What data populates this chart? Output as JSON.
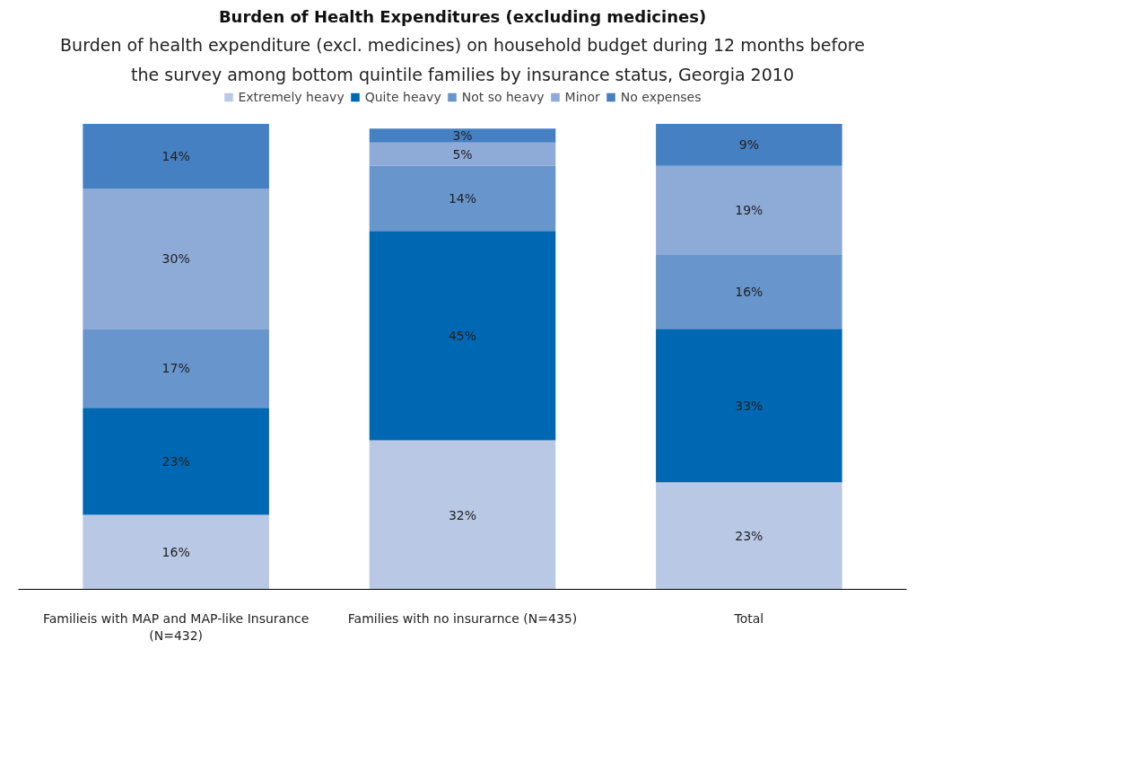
{
  "chart_data": {
    "type": "bar",
    "stacked": true,
    "legend": "top",
    "grid": false,
    "title": "Burden of Health Expenditures (excluding medicines)",
    "subtitle": "Burden of health expenditure (excl. medicines) on household budget during 12 months before the survey among bottom quintile families by insurance status, Georgia 2010",
    "categories": [
      "Familieis with MAP and MAP-like Insurance (N=432)",
      "Families with no insurarnce (N=435)",
      "Total"
    ],
    "series": [
      {
        "name": "Extremely heavy",
        "color": "#b9c9e5",
        "values": [
          16,
          32,
          23
        ],
        "value_labels": [
          "16%",
          "32%",
          "23%"
        ]
      },
      {
        "name": "Quite heavy",
        "color": "#0068b3",
        "values": [
          23,
          45,
          33
        ],
        "value_labels": [
          "23%",
          "45%",
          "33%"
        ]
      },
      {
        "name": "Not so heavy",
        "color": "#6895cc",
        "values": [
          17,
          14,
          16
        ],
        "value_labels": [
          "17%",
          "14%",
          "16%"
        ]
      },
      {
        "name": "Minor",
        "color": "#8eaad7",
        "values": [
          30,
          5,
          19
        ],
        "value_labels": [
          "30%",
          "5%",
          "19%"
        ]
      },
      {
        "name": "No expenses",
        "color": "#4580c2",
        "values": [
          14,
          3,
          9
        ],
        "value_labels": [
          "14%",
          "3%",
          "9%"
        ]
      }
    ]
  }
}
